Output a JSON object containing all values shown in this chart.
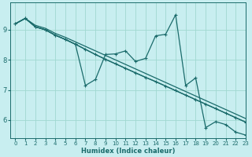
{
  "xlabel": "Humidex (Indice chaleur)",
  "bg_color": "#c8eef0",
  "grid_color": "#a0d8d0",
  "line_color": "#1a6b6b",
  "xlim": [
    -0.5,
    23
  ],
  "ylim": [
    5.4,
    9.9
  ],
  "xticks": [
    0,
    1,
    2,
    3,
    4,
    5,
    6,
    7,
    8,
    9,
    10,
    11,
    12,
    13,
    14,
    15,
    16,
    17,
    18,
    19,
    20,
    21,
    22,
    23
  ],
  "yticks": [
    6,
    7,
    8,
    9
  ],
  "line1_x": [
    0,
    1,
    2,
    3,
    4,
    5,
    6,
    7,
    8,
    9,
    10,
    11,
    12,
    13,
    14,
    15,
    16,
    17,
    18,
    19,
    20,
    21,
    22,
    23
  ],
  "line1_y": [
    9.2,
    9.38,
    9.15,
    9.05,
    8.88,
    8.75,
    8.6,
    8.45,
    8.3,
    8.15,
    8.0,
    7.85,
    7.7,
    7.55,
    7.4,
    7.25,
    7.1,
    6.95,
    6.8,
    6.65,
    6.5,
    6.35,
    6.2,
    6.05
  ],
  "line2_x": [
    0,
    1,
    2,
    3,
    4,
    5,
    6,
    7,
    8,
    9,
    10,
    11,
    12,
    13,
    14,
    15,
    16,
    17,
    18,
    19,
    20,
    21,
    22,
    23
  ],
  "line2_y": [
    9.2,
    9.38,
    9.1,
    9.0,
    8.82,
    8.68,
    8.52,
    8.35,
    8.18,
    8.02,
    7.87,
    7.72,
    7.57,
    7.42,
    7.28,
    7.13,
    6.98,
    6.83,
    6.68,
    6.53,
    6.38,
    6.23,
    6.08,
    5.93
  ],
  "line3_x": [
    0,
    1,
    2,
    3,
    4,
    5,
    6,
    7,
    8,
    9,
    10,
    11,
    12,
    13,
    14,
    15,
    16,
    17,
    18,
    19,
    20,
    21,
    22,
    23
  ],
  "line3_y": [
    9.2,
    9.38,
    9.1,
    9.0,
    8.82,
    8.68,
    8.52,
    7.15,
    7.35,
    8.18,
    8.2,
    8.3,
    7.95,
    8.05,
    8.8,
    8.85,
    9.5,
    7.15,
    7.4,
    5.75,
    5.95,
    5.85,
    5.6,
    5.5
  ],
  "line4_x": [
    0,
    1,
    2,
    3,
    4,
    5,
    6,
    7,
    8,
    9,
    10,
    11,
    12,
    13,
    14,
    15,
    16,
    17,
    18,
    19,
    20,
    21,
    22,
    23
  ],
  "line4_y": [
    9.2,
    9.38,
    9.1,
    9.0,
    8.82,
    8.68,
    8.52,
    8.35,
    8.18,
    8.02,
    7.87,
    7.72,
    7.57,
    7.42,
    7.28,
    7.13,
    6.98,
    6.83,
    6.68,
    6.53,
    6.38,
    6.23,
    6.08,
    5.93
  ]
}
